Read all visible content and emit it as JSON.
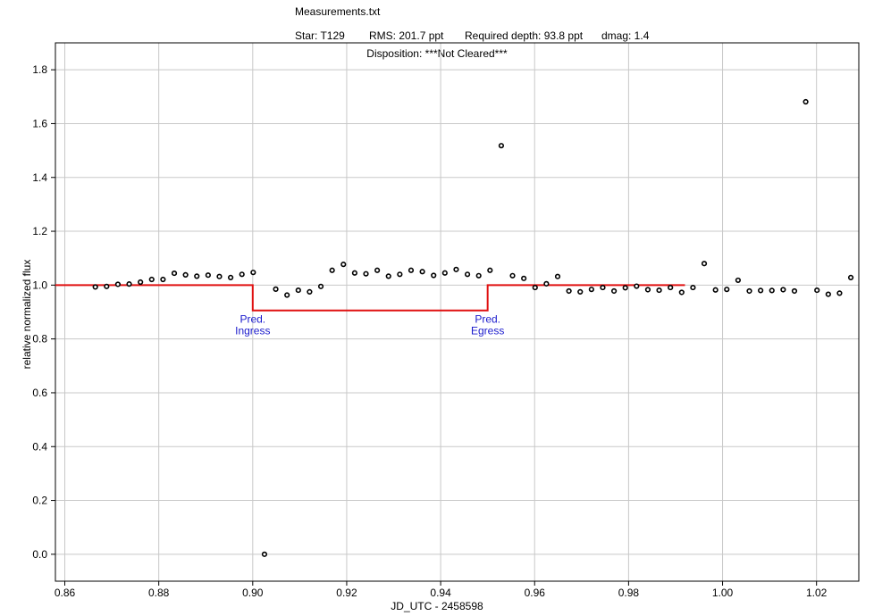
{
  "header": {
    "title": "Measurements.txt",
    "star": "Star: T129",
    "rms": "RMS: 201.7 ppt",
    "required_depth": "Required depth: 93.8 ppt",
    "dmag": "dmag: 1.4",
    "disposition": "Disposition: ***Not Cleared***"
  },
  "chart_data": {
    "type": "scatter",
    "xlabel": "JD_UTC - 2458598",
    "ylabel": "relative normalized flux",
    "xlim": [
      0.858,
      1.029
    ],
    "ylim": [
      -0.1,
      1.9
    ],
    "xticks": [
      0.86,
      0.88,
      0.9,
      0.92,
      0.94,
      0.96,
      0.98,
      1.0,
      1.02
    ],
    "xtick_labels": [
      "0.86",
      "0.88",
      "0.90",
      "0.92",
      "0.94",
      "0.96",
      "0.98",
      "1.00",
      "1.02"
    ],
    "yticks": [
      0.0,
      0.2,
      0.4,
      0.6,
      0.8,
      1.0,
      1.2,
      1.4,
      1.6,
      1.8
    ],
    "ytick_labels": [
      "0.0",
      "0.2",
      "0.4",
      "0.6",
      "0.8",
      "1.0",
      "1.2",
      "1.4",
      "1.6",
      "1.8"
    ],
    "grid": true,
    "series": [
      {
        "kind": "points",
        "color": "#000000",
        "points": [
          [
            0.8665,
            0.993
          ],
          [
            0.8689,
            0.995
          ],
          [
            0.8713,
            1.003
          ],
          [
            0.8737,
            1.004
          ],
          [
            0.8761,
            1.011
          ],
          [
            0.8785,
            1.021
          ],
          [
            0.8809,
            1.021
          ],
          [
            0.8833,
            1.044
          ],
          [
            0.8857,
            1.038
          ],
          [
            0.8881,
            1.033
          ],
          [
            0.8905,
            1.037
          ],
          [
            0.8929,
            1.032
          ],
          [
            0.8953,
            1.028
          ],
          [
            0.8977,
            1.04
          ],
          [
            0.9001,
            1.047
          ],
          [
            0.9025,
            0.0
          ],
          [
            0.9049,
            0.985
          ],
          [
            0.9073,
            0.963
          ],
          [
            0.9097,
            0.981
          ],
          [
            0.9121,
            0.975
          ],
          [
            0.9145,
            0.995
          ],
          [
            0.9169,
            1.055
          ],
          [
            0.9193,
            1.077
          ],
          [
            0.9217,
            1.045
          ],
          [
            0.9241,
            1.042
          ],
          [
            0.9265,
            1.055
          ],
          [
            0.9289,
            1.033
          ],
          [
            0.9313,
            1.04
          ],
          [
            0.9337,
            1.055
          ],
          [
            0.9361,
            1.05
          ],
          [
            0.9385,
            1.036
          ],
          [
            0.9409,
            1.045
          ],
          [
            0.9433,
            1.058
          ],
          [
            0.9457,
            1.04
          ],
          [
            0.9481,
            1.035
          ],
          [
            0.9505,
            1.055
          ],
          [
            0.9529,
            1.518
          ],
          [
            0.9553,
            1.035
          ],
          [
            0.9577,
            1.025
          ],
          [
            0.9601,
            0.991
          ],
          [
            0.9625,
            1.005
          ],
          [
            0.9649,
            1.032
          ],
          [
            0.9673,
            0.978
          ],
          [
            0.9697,
            0.975
          ],
          [
            0.9721,
            0.984
          ],
          [
            0.9745,
            0.991
          ],
          [
            0.9769,
            0.978
          ],
          [
            0.9793,
            0.99
          ],
          [
            0.9817,
            0.996
          ],
          [
            0.9841,
            0.983
          ],
          [
            0.9865,
            0.981
          ],
          [
            0.9889,
            0.991
          ],
          [
            0.9913,
            0.973
          ],
          [
            0.9937,
            0.991
          ],
          [
            0.9961,
            1.08
          ],
          [
            0.9985,
            0.982
          ],
          [
            1.0009,
            0.984
          ],
          [
            1.0033,
            1.018
          ],
          [
            1.0057,
            0.978
          ],
          [
            1.0081,
            0.98
          ],
          [
            1.0105,
            0.98
          ],
          [
            1.0129,
            0.983
          ],
          [
            1.0153,
            0.978
          ],
          [
            1.0177,
            1.681
          ],
          [
            1.0201,
            0.981
          ],
          [
            1.0225,
            0.966
          ],
          [
            1.0249,
            0.97
          ],
          [
            1.0273,
            1.028
          ]
        ]
      },
      {
        "kind": "model",
        "color": "#e01010",
        "points": [
          [
            0.858,
            1.0
          ],
          [
            0.9,
            1.0
          ],
          [
            0.9,
            0.906
          ],
          [
            0.95,
            0.906
          ],
          [
            0.95,
            1.0
          ],
          [
            0.992,
            1.0
          ]
        ]
      }
    ],
    "annotations": [
      {
        "line1": "Pred.",
        "line2": "Ingress",
        "x": 0.9
      },
      {
        "line1": "Pred.",
        "line2": "Egress",
        "x": 0.95
      }
    ]
  }
}
